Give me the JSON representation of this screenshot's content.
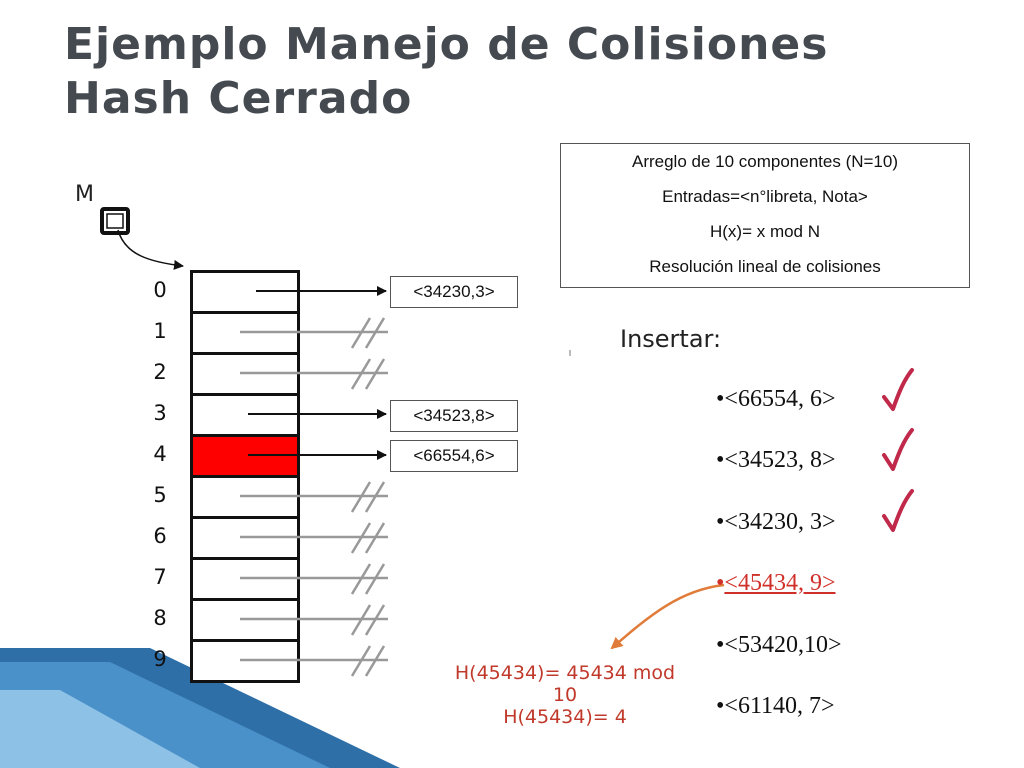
{
  "title": {
    "line1": "Ejemplo Manejo de Colisiones",
    "line2": "Hash Cerrado"
  },
  "info": {
    "lines": [
      "Arreglo de 10 componentes (N=10)",
      "Entradas=<n°libreta, Nota>",
      "H(x)= x mod N",
      "Resolución lineal de colisiones"
    ]
  },
  "pointer_label": "M",
  "table": {
    "indices": [
      "0",
      "1",
      "2",
      "3",
      "4",
      "5",
      "6",
      "7",
      "8",
      "9"
    ],
    "highlighted_index": 4,
    "highlight_color": "#ff0000",
    "entries": [
      {
        "index": 0,
        "text": "<34230,3>"
      },
      {
        "index": 3,
        "text": "<34523,8>"
      },
      {
        "index": 4,
        "text": "<66554,6>"
      }
    ],
    "null_indices": [
      1,
      2,
      5,
      6,
      7,
      8,
      9
    ]
  },
  "insert": {
    "title": "Insertar:",
    "items": [
      {
        "text": "<66554, 6>",
        "done": true,
        "current": false
      },
      {
        "text": "<34523, 8>",
        "done": true,
        "current": false
      },
      {
        "text": "<34230, 3>",
        "done": true,
        "current": false
      },
      {
        "text": "<45434, 9>",
        "done": false,
        "current": true
      },
      {
        "text": "<53420,10>",
        "done": false,
        "current": false
      },
      {
        "text": "<61140, 7>",
        "done": false,
        "current": false
      }
    ]
  },
  "formula": {
    "line1": "H(45434)= 45434 mod",
    "line2": "10",
    "line3": "H(45434)= 4"
  },
  "colors": {
    "check": "#c0294a",
    "highlight_arrow": "#e07b39",
    "formula": "#c0392b",
    "title": "#444a50"
  }
}
